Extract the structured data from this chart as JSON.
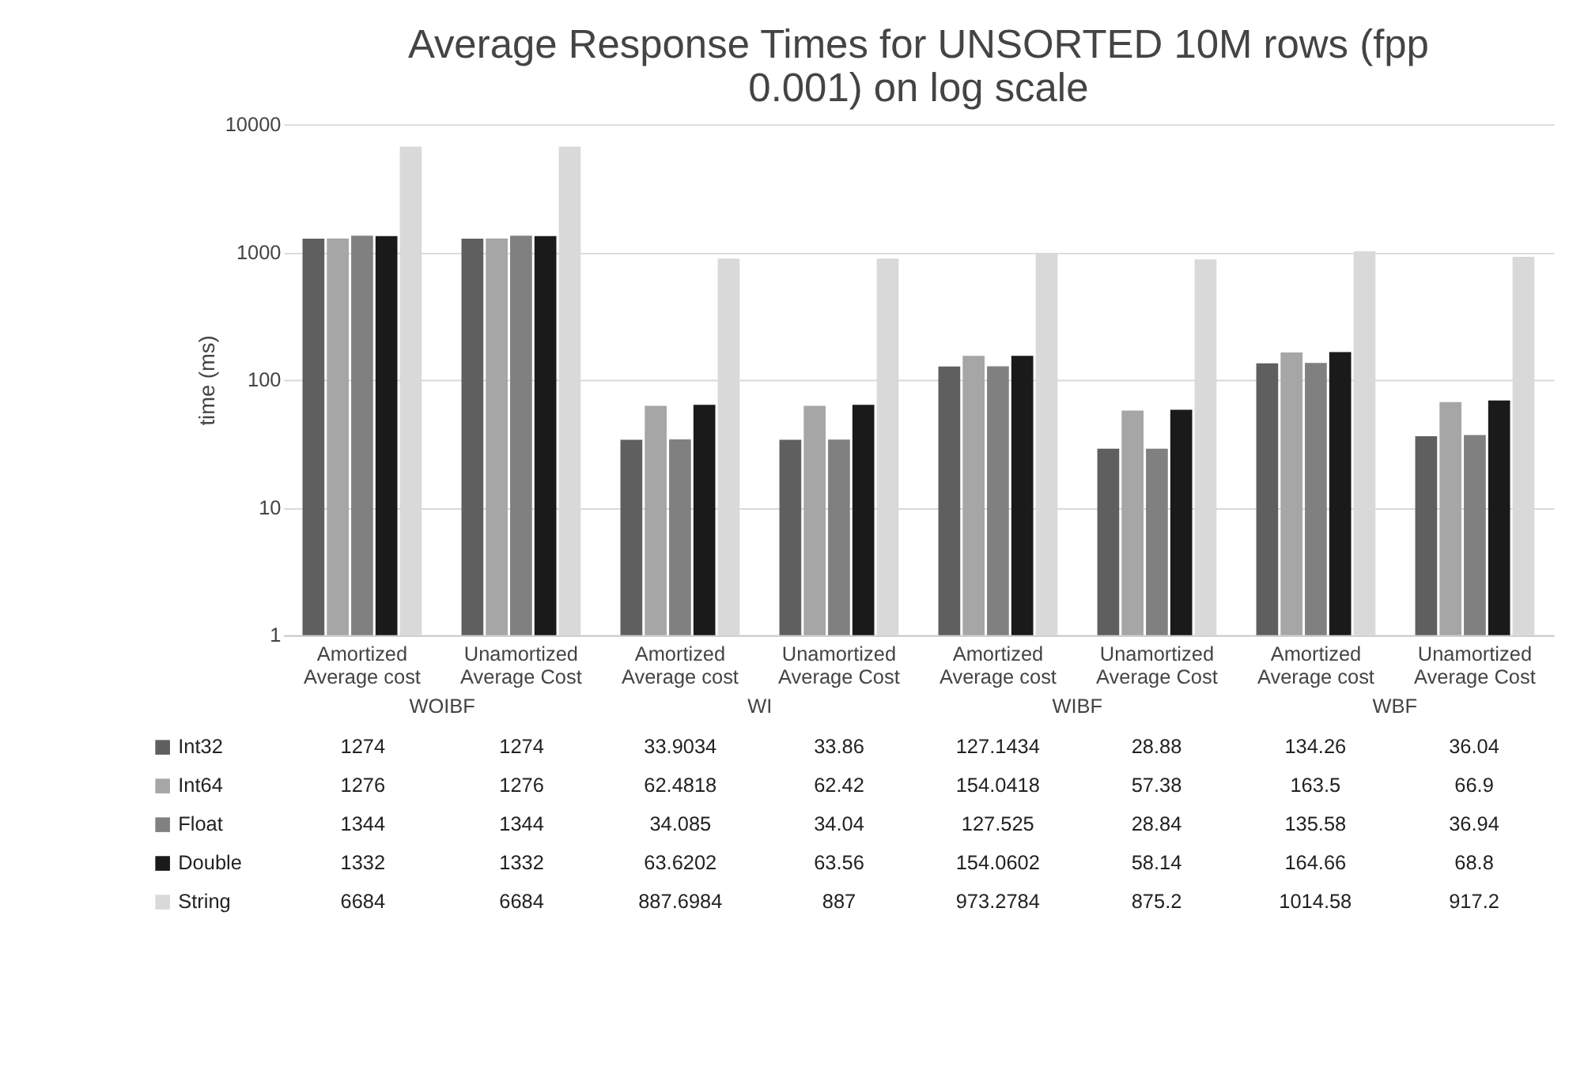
{
  "chart_data": {
    "type": "bar",
    "title": "Average Response Times for UNSORTED 10M rows (fpp 0.001) on log scale",
    "ylabel": "time (ms)",
    "categories": [
      "Amortized Average cost",
      "Unamortized Average Cost",
      "Amortized Average cost",
      "Unamortized Average Cost",
      "Amortized Average cost",
      "Unamortized Average Cost",
      "Amortized Average cost",
      "Unamortized Average Cost"
    ],
    "annotations": [
      "WOIBF",
      "WI",
      "WIBF",
      "WBF"
    ],
    "series": [
      {
        "name": "Int32",
        "color": "#5f5f5f",
        "values": [
          1274,
          1274,
          33.9034,
          33.86,
          127.1434,
          28.88,
          134.26,
          36.04
        ]
      },
      {
        "name": "Int64",
        "color": "#a6a6a6",
        "values": [
          1276,
          1276,
          62.4818,
          62.42,
          154.0418,
          57.38,
          163.5,
          66.9
        ]
      },
      {
        "name": "Float",
        "color": "#808080",
        "values": [
          1344,
          1344,
          34.085,
          34.04,
          127.525,
          28.84,
          135.58,
          36.94
        ]
      },
      {
        "name": "Double",
        "color": "#1a1a1a",
        "values": [
          1332,
          1332,
          63.6202,
          63.56,
          154.0602,
          58.14,
          164.66,
          68.8
        ]
      },
      {
        "name": "String",
        "color": "#d9d9d9",
        "values": [
          6684,
          6684,
          887.6984,
          887,
          973.2784,
          875.2,
          1014.58,
          917.2
        ]
      }
    ],
    "ylim": [
      1,
      10000
    ],
    "yticks": [
      1,
      10,
      100,
      1000,
      10000
    ],
    "log": true,
    "grid": "y",
    "legend": "bottom",
    "data_labels": true
  }
}
